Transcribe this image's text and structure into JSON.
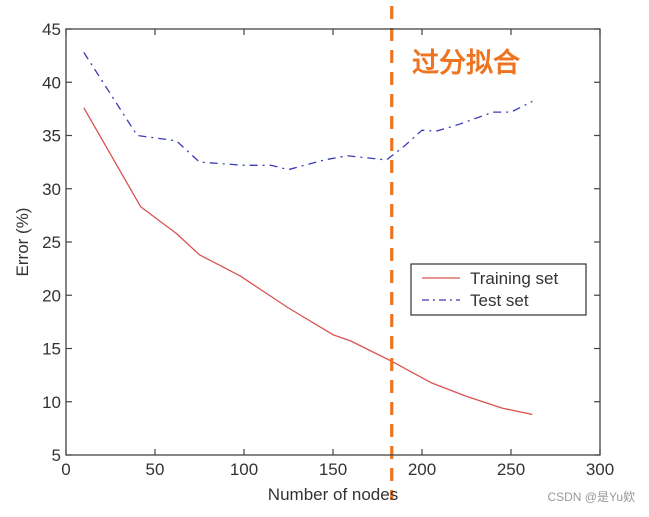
{
  "chart_data": {
    "type": "line",
    "title": "",
    "xlabel": "Number of nodes",
    "ylabel": "Error (%)",
    "xlim": [
      0,
      300
    ],
    "ylim": [
      5,
      45
    ],
    "x_ticks": [
      0,
      50,
      100,
      150,
      200,
      250,
      300
    ],
    "y_ticks": [
      5,
      10,
      15,
      20,
      25,
      30,
      35,
      40,
      45
    ],
    "grid": false,
    "legend_position": "center-right",
    "series": [
      {
        "name": "Training set",
        "color": "#d9534f",
        "style": "solid",
        "x": [
          10,
          42,
          62,
          75,
          98,
          125,
          150,
          160,
          183,
          205,
          225,
          245,
          262
        ],
        "values": [
          37.6,
          28.3,
          25.8,
          23.8,
          21.8,
          18.8,
          16.3,
          15.7,
          13.8,
          11.8,
          10.5,
          9.4,
          8.8
        ]
      },
      {
        "name": "Test set",
        "color": "#3a3ab8",
        "style": "dashdot",
        "x": [
          10,
          40,
          62,
          75,
          100,
          115,
          125,
          145,
          158,
          180,
          190,
          200,
          208,
          220,
          240,
          250,
          262
        ],
        "values": [
          42.8,
          35.0,
          34.5,
          32.5,
          32.2,
          32.2,
          31.8,
          32.7,
          33.1,
          32.7,
          34.0,
          35.5,
          35.4,
          36.0,
          37.2,
          37.2,
          38.2
        ]
      }
    ],
    "annotations": [
      {
        "type": "vertical-line",
        "x": 183,
        "color": "#ee7420",
        "style": "dashed"
      },
      {
        "type": "text",
        "text": "过分拟合",
        "color": "#ee7420",
        "position": "top-right-of-line"
      }
    ]
  },
  "labels": {
    "xlabel": "Number of nodes",
    "ylabel": "Error (%)",
    "annotation": "过分拟合",
    "legend_training": "Training set",
    "legend_test": "Test set",
    "watermark": "CSDN @是Yu欸"
  }
}
